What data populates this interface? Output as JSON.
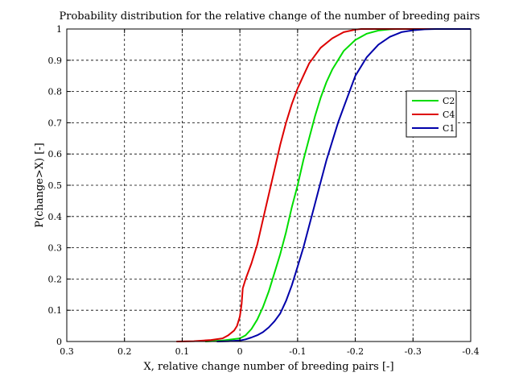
{
  "chart_data": {
    "type": "line",
    "title": "Probability distribution for the relative change of the number of breeding pairs",
    "xlabel": "X, relative change number of breeding pairs [-]",
    "ylabel": "P(change>X) [-]",
    "xlim": [
      0.3,
      -0.4
    ],
    "ylim": [
      0,
      1
    ],
    "x_reversed": true,
    "grid": true,
    "legend_position": "right",
    "xticks": [
      0.3,
      0.2,
      0.1,
      0,
      -0.1,
      -0.2,
      -0.3,
      -0.4
    ],
    "xtick_labels": [
      "0.3",
      "0.2",
      "0.1",
      "0",
      "-0.1",
      "-0.2",
      "-0.3",
      "-0.4"
    ],
    "yticks": [
      0,
      0.1,
      0.2,
      0.3,
      0.4,
      0.5,
      0.6,
      0.7,
      0.8,
      0.9,
      1
    ],
    "ytick_labels": [
      "0",
      "0.1",
      "0.2",
      "0.3",
      "0.4",
      "0.5",
      "0.6",
      "0.7",
      "0.8",
      "0.9",
      "1"
    ],
    "series": [
      {
        "name": "C2",
        "color": "#00dd00",
        "x": [
          0.06,
          0.03,
          0.0,
          -0.01,
          -0.02,
          -0.03,
          -0.04,
          -0.05,
          -0.06,
          -0.07,
          -0.08,
          -0.09,
          -0.1,
          -0.11,
          -0.12,
          -0.13,
          -0.14,
          -0.15,
          -0.16,
          -0.18,
          -0.2,
          -0.22,
          -0.24,
          -0.26,
          -0.27
        ],
        "y": [
          0,
          0.003,
          0.01,
          0.02,
          0.04,
          0.07,
          0.11,
          0.16,
          0.22,
          0.28,
          0.35,
          0.43,
          0.5,
          0.58,
          0.65,
          0.72,
          0.78,
          0.83,
          0.87,
          0.93,
          0.965,
          0.985,
          0.995,
          0.999,
          1
        ]
      },
      {
        "name": "C4",
        "color": "#dd0000",
        "x": [
          0.11,
          0.08,
          0.05,
          0.03,
          0.02,
          0.01,
          0.005,
          0.0,
          -0.003,
          -0.005,
          -0.01,
          -0.02,
          -0.03,
          -0.04,
          -0.05,
          -0.06,
          -0.07,
          -0.08,
          -0.09,
          -0.1,
          -0.11,
          -0.12,
          -0.14,
          -0.16,
          -0.18,
          -0.2,
          -0.21
        ],
        "y": [
          0,
          0.001,
          0.005,
          0.01,
          0.02,
          0.035,
          0.05,
          0.08,
          0.12,
          0.17,
          0.2,
          0.25,
          0.31,
          0.39,
          0.47,
          0.55,
          0.63,
          0.7,
          0.76,
          0.81,
          0.85,
          0.89,
          0.94,
          0.97,
          0.99,
          0.998,
          1
        ]
      },
      {
        "name": "C1",
        "color": "#0000aa",
        "x": [
          0.04,
          0.02,
          0.0,
          -0.01,
          -0.02,
          -0.03,
          -0.04,
          -0.05,
          -0.06,
          -0.07,
          -0.08,
          -0.09,
          -0.1,
          -0.11,
          -0.12,
          -0.13,
          -0.14,
          -0.15,
          -0.16,
          -0.17,
          -0.18,
          -0.19,
          -0.2,
          -0.22,
          -0.24,
          -0.26,
          -0.28,
          -0.3,
          -0.32,
          -0.34
        ],
        "y": [
          0,
          0.001,
          0.003,
          0.007,
          0.013,
          0.02,
          0.03,
          0.045,
          0.065,
          0.09,
          0.13,
          0.18,
          0.24,
          0.3,
          0.37,
          0.44,
          0.51,
          0.58,
          0.64,
          0.7,
          0.75,
          0.8,
          0.85,
          0.91,
          0.95,
          0.975,
          0.99,
          0.996,
          0.999,
          1
        ]
      }
    ]
  }
}
